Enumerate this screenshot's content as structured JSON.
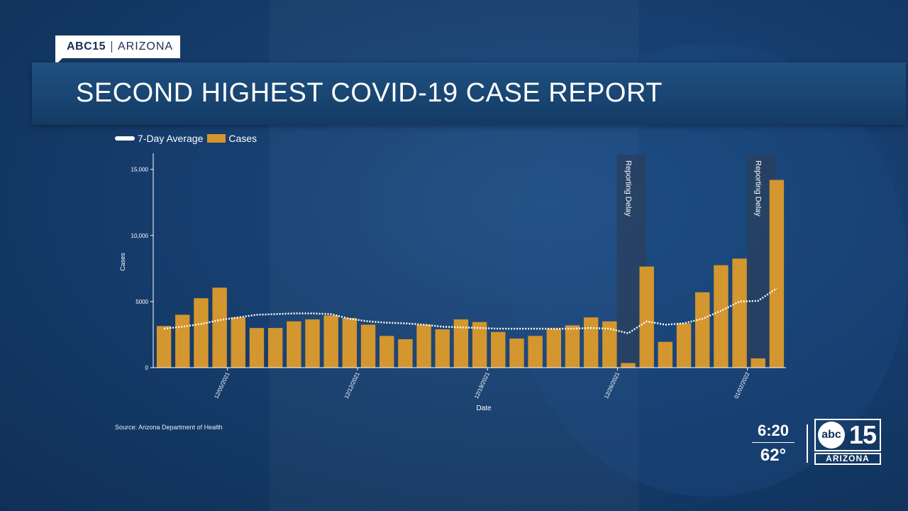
{
  "brand": {
    "network": "ABC15",
    "region": "ARIZONA"
  },
  "headline": "SECOND HIGHEST COVID-19 CASE REPORT",
  "legend": {
    "line_label": "7-Day Average",
    "bar_label": "Cases"
  },
  "source": "Source: Arizona Department of Health",
  "clock": {
    "time": "6:20",
    "temp": "62°"
  },
  "station_logo": {
    "mark": "abc",
    "number": "15",
    "region": "ARIZONA"
  },
  "colors": {
    "bars": "#d4962e",
    "line": "#ffffff",
    "highlight": "#2a3f5c"
  },
  "chart_data": {
    "type": "bar",
    "xlabel": "Date",
    "ylabel": "Cases",
    "ylim": [
      0,
      16000
    ],
    "yticks": [
      0,
      5000,
      10000,
      15000
    ],
    "ytick_labels": [
      "0",
      "5000",
      "10,000",
      "15,000"
    ],
    "x_ticks": [
      {
        "index": 4,
        "label": "12/05/2021"
      },
      {
        "index": 11,
        "label": "12/12/2021"
      },
      {
        "index": 18,
        "label": "12/19/2021"
      },
      {
        "index": 25,
        "label": "12/26/2021"
      },
      {
        "index": 32,
        "label": "01/02/2022"
      }
    ],
    "cases": [
      3150,
      4000,
      5250,
      6050,
      3800,
      3000,
      3000,
      3500,
      3650,
      3950,
      3750,
      3250,
      2400,
      2150,
      3250,
      2900,
      3650,
      3450,
      2700,
      2200,
      2400,
      2950,
      3200,
      3800,
      3500,
      350,
      7650,
      1950,
      3350,
      5700,
      7750,
      8250,
      700,
      14200
    ],
    "seven_day_average": [
      2950,
      3100,
      3300,
      3600,
      3800,
      4000,
      4050,
      4100,
      4100,
      4050,
      3700,
      3500,
      3400,
      3350,
      3250,
      3100,
      3050,
      3000,
      2950,
      2950,
      2950,
      2950,
      2950,
      3000,
      2950,
      2600,
      3500,
      3250,
      3350,
      3700,
      4300,
      5000,
      5050,
      6000
    ],
    "annotations": [
      {
        "text": "Reporting Delay",
        "index": 25
      },
      {
        "text": "Reporting Delay",
        "index": 32
      }
    ]
  }
}
